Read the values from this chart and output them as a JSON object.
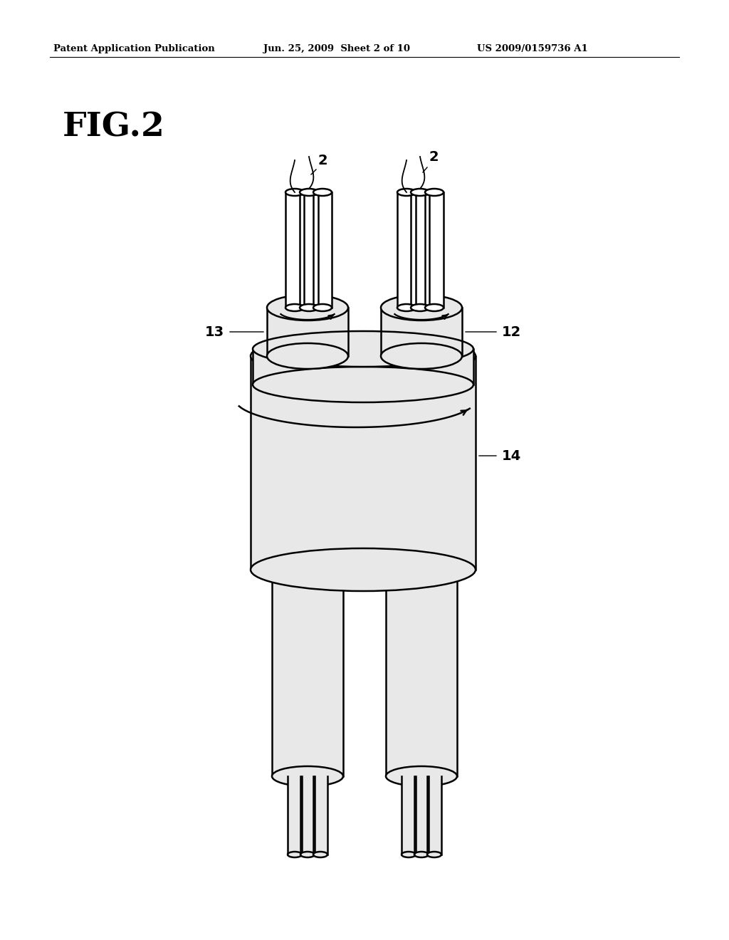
{
  "background_color": "#ffffff",
  "header_left": "Patent Application Publication",
  "header_center": "Jun. 25, 2009  Sheet 2 of 10",
  "header_right": "US 2009/0159736 A1",
  "fig_label": "FIG.2",
  "lc": "#000000",
  "lw": 1.8,
  "fill_light": "#e8e8e8",
  "fill_white": "#ffffff"
}
